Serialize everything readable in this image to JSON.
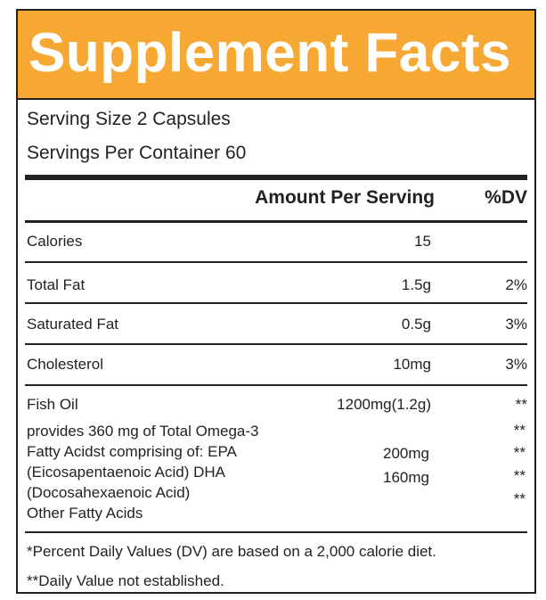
{
  "title": "Supplement Facts",
  "serving_size": "Serving Size 2 Capsules",
  "servings_per_container": "Servings Per Container 60",
  "columns": {
    "amount": "Amount Per Serving",
    "dv": "%DV"
  },
  "rows": [
    {
      "name": "Calories",
      "amount": "15",
      "dv": ""
    },
    {
      "name": "Total Fat",
      "amount": "1.5g",
      "dv": "2%"
    },
    {
      "name": "Saturated Fat",
      "amount": "0.5g",
      "dv": "3%"
    },
    {
      "name": "Cholesterol",
      "amount": "10mg",
      "dv": "3%"
    }
  ],
  "fish_oil": {
    "name": "Fish Oil",
    "amount": "1200mg(1.2g)",
    "dv": "**",
    "lines": [
      "provides 360 mg of Total Omega-3",
      "Fatty Acidst comprising of: EPA",
      "(Eicosapentaenoic Acid) DHA",
      "(Docosahexaenoic Acid)",
      "Other Fatty Acids"
    ],
    "sub_amounts": [
      "200mg",
      "160mg"
    ],
    "sub_dvs": [
      "**",
      "**",
      "**",
      "**"
    ]
  },
  "footnotes": [
    "*Percent Daily Values (DV) are based on a 2,000 calorie diet.",
    "**Daily Value not established."
  ],
  "colors": {
    "header_bg": "#f7a833",
    "title_text": "#ffffff",
    "border": "#222222"
  }
}
